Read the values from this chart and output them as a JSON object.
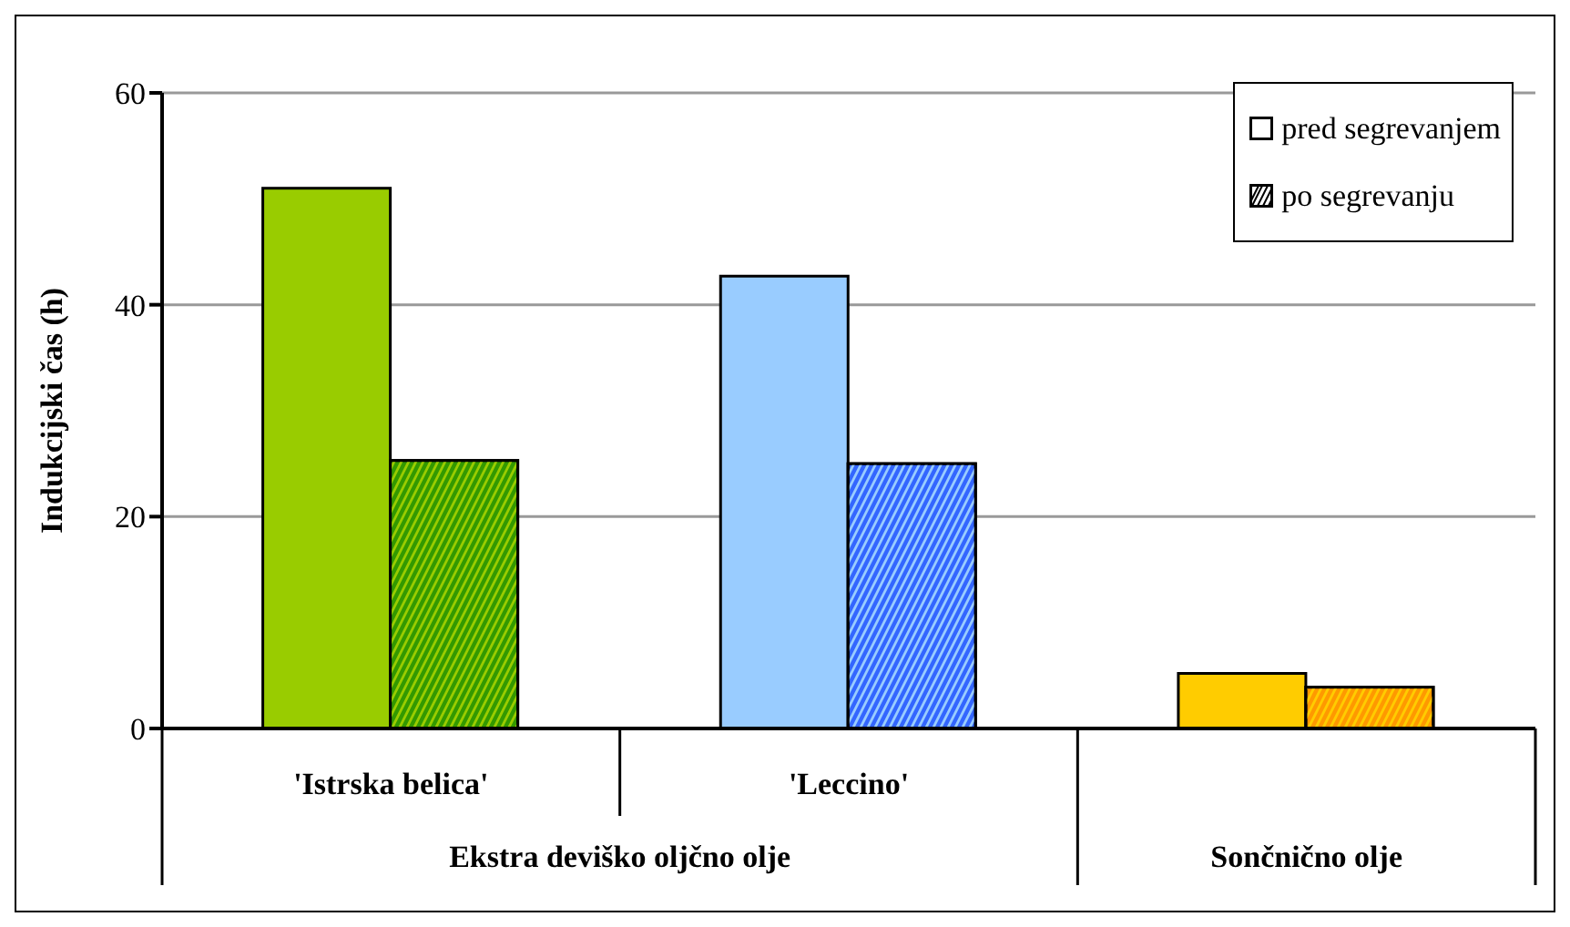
{
  "chart_data": {
    "type": "bar",
    "categories": [
      "'Istrska belica'",
      "'Leccino'",
      null
    ],
    "series": [
      {
        "name": "pred segrevanjem",
        "colors": [
          "#99cc00",
          "#99ccff",
          "#ffcc00"
        ],
        "values": [
          51,
          42.7,
          5.2
        ]
      },
      {
        "name": "po segrevanju",
        "colors": [
          "#339900",
          "#3366ff",
          "#ff9900"
        ],
        "values": [
          25.3,
          25.0,
          3.9
        ]
      }
    ],
    "ylabel": "Indukcijski čas (h)",
    "ylim": [
      0,
      60
    ],
    "yticks": [
      0,
      20,
      40,
      60
    ],
    "grid": "y",
    "legend": "top right",
    "annotations": [
      "Ekstra deviško oljčno olje",
      "Sončnično olje"
    ]
  }
}
